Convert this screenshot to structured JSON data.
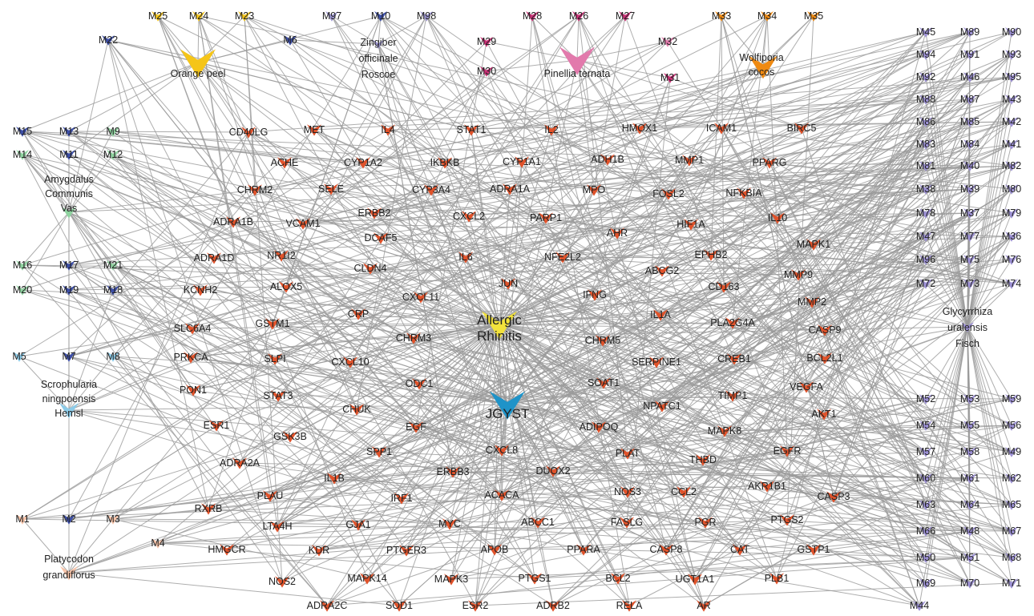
{
  "colors": {
    "edge": "#9a9a9a",
    "target": "#e0522a",
    "disease": "#f2e23c",
    "formula": "#1f93c8",
    "herbs": {
      "orange_peel": "#f5c518",
      "zingiber": "#9b94d0",
      "pinellia": "#e27aac",
      "wolfiporia": "#ef8a12",
      "glycyrrhiza": "#9b8fd3",
      "amygdalus": "#8fd3a0",
      "scrophularia": "#8ccbe8",
      "platycodon": "#f7c3a8",
      "shared": "#3c4ea6",
      "pinellia_dark": "#cc2f76"
    }
  },
  "hubs": {
    "disease": "Allergic Rhinitis",
    "formula": "JGYST"
  },
  "herbs": [
    "Orange peel",
    "Zingiber officinale Roscoe",
    "Pinellia ternata",
    "Wolfiporia cocos",
    "Amygdalus Communis Vas",
    "Glycyrrhiza uralensis Fisch",
    "Scrophularia ningpoensis Hemsl",
    "Platycodon grandiflorus"
  ],
  "ingredients": [
    "M25",
    "M24",
    "M23",
    "M97",
    "M10",
    "M98",
    "M28",
    "M26",
    "M27",
    "M33",
    "M34",
    "M35",
    "M22",
    "M6",
    "M29",
    "M32",
    "M30",
    "M31",
    "M15",
    "M13",
    "M9",
    "M14",
    "M11",
    "M12",
    "M16",
    "M17",
    "M21",
    "M20",
    "M19",
    "M18",
    "M5",
    "M7",
    "M8",
    "M1",
    "M2",
    "M3",
    "M4",
    "M45",
    "M89",
    "M90",
    "M94",
    "M91",
    "M93",
    "M92",
    "M46",
    "M95",
    "M88",
    "M87",
    "M43",
    "M86",
    "M85",
    "M42",
    "M83",
    "M84",
    "M41",
    "M81",
    "M40",
    "M82",
    "M38",
    "M39",
    "M80",
    "M78",
    "M37",
    "M79",
    "M47",
    "M77",
    "M36",
    "M96",
    "M75",
    "M76",
    "M72",
    "M73",
    "M74",
    "M52",
    "M53",
    "M59",
    "M54",
    "M55",
    "M56",
    "M57",
    "M58",
    "M49",
    "M60",
    "M61",
    "M62",
    "M63",
    "M64",
    "M65",
    "M66",
    "M48",
    "M67",
    "M50",
    "M51",
    "M68",
    "M69",
    "M70",
    "M71",
    "M44"
  ],
  "targets": [
    "CD40LG",
    "MET",
    "IL4",
    "STAT1",
    "IL2",
    "HMOX1",
    "ICAM1",
    "BIRC5",
    "ACHE",
    "CYP1A2",
    "IKBKB",
    "CYP1A1",
    "ADH1B",
    "MMP1",
    "PPARG",
    "CHRM2",
    "SELE",
    "CYP3A4",
    "ADRA1A",
    "MPO",
    "FOSL2",
    "NFKBIA",
    "ADRA1B",
    "VCAM1",
    "ERBB2",
    "CXCL2",
    "PARP1",
    "AHR",
    "HIF1A",
    "IL10",
    "ADRA1D",
    "NR1I2",
    "DCAF5",
    "IL6",
    "NFE2L2",
    "EPHB2",
    "MAPK1",
    "CLDN4",
    "ABCG2",
    "KCNH2",
    "ALOX5",
    "JUN",
    "MMP9",
    "CD163",
    "CXCL11",
    "IFNG",
    "MMP2",
    "SLC6A4",
    "GSTM1",
    "CRP",
    "IL1A",
    "PLA2G4A",
    "CASP9",
    "CHRM3",
    "CHRM5",
    "PRKCA",
    "SLPI",
    "CXCL10",
    "SERPINE1",
    "CREB1",
    "BCL2L1",
    "PON1",
    "STAT3",
    "ODC1",
    "SOAT1",
    "TIMP1",
    "VEGFA",
    "CHUK",
    "NPATC1",
    "AKT1",
    "ESR1",
    "GSK3B",
    "EGF",
    "ADIPOQ",
    "MAPK8",
    "CXCL8",
    "SPP1",
    "PLAT",
    "THBD",
    "EGFR",
    "ADRA2A",
    "ERBB3",
    "DUOX2",
    "IL1B",
    "PLAU",
    "IRF1",
    "ACACA",
    "NOS3",
    "CCL2",
    "AKR1B1",
    "CASP3",
    "RXRB",
    "LTA4H",
    "GJA1",
    "MYC",
    "ABCC1",
    "FASLG",
    "PGR",
    "PTGS2",
    "HMGCR",
    "KDR",
    "PTGER3",
    "APOB",
    "PPARA",
    "CASP8",
    "CAT",
    "GSTP1",
    "NOS2",
    "MAPK14",
    "MAPK3",
    "PTGS1",
    "BCL2",
    "UGT1A1",
    "PLB1",
    "ADRA2C",
    "SOD1",
    "ESR2",
    "ADRB2",
    "RELA",
    "AR"
  ]
}
